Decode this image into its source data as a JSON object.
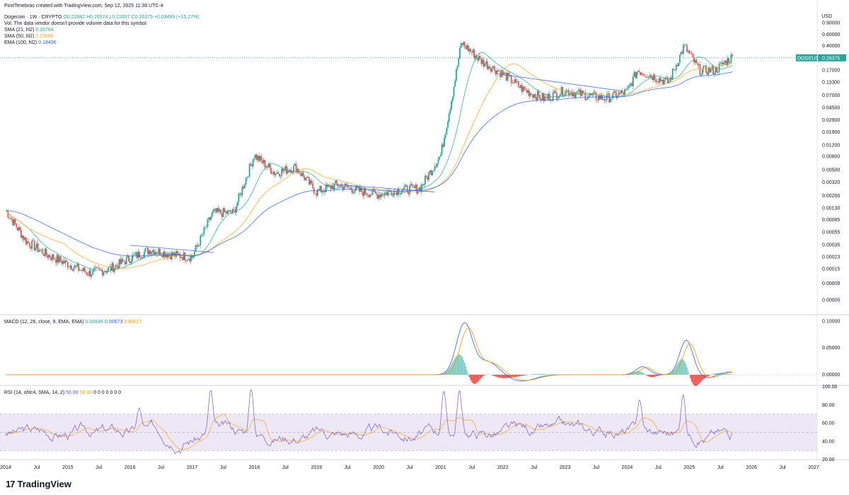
{
  "header": {
    "credit": "PostTenebras created with TradingView.com, Sep 12, 2025 11:38 UTC-4",
    "symbol_line": "Dogecoin · 1W · CRYPTO",
    "ohlc": "O0.22882 H0.26574 L0.22657 C0.26375 +0.03493 (+15.27%)",
    "vol_note": "Vol: The data vendor doesn't provide volume data for this symbol.",
    "sma21_label": "SMA (21, hl2)",
    "sma21_value": "0.20764",
    "sma50_label": "SMA (50, hl2)",
    "sma50_value": "0.23686",
    "ema100_label": "EMA (100, hl2)",
    "ema100_value": "0.18496"
  },
  "currency": "USD",
  "price_tag": {
    "symbol": "DOGEUSD",
    "value": "0.26375"
  },
  "macd_header": {
    "label": "MACD (12, 26, close, 9, EMA, EMA)",
    "v1": "0.00646",
    "v2": "0.00673",
    "v3": "0.00027"
  },
  "rsi_header": {
    "label": "RSI (14, ohlc4, SMA, 14, 2)",
    "v1": "56.88",
    "v2": "58.88",
    "rest": "0 0 0 0 0 0 0"
  },
  "brand": "TradingView",
  "colors": {
    "up": "#26a69a",
    "down": "#ef5350",
    "sma21": "#26a69a",
    "sma50": "#f5a623",
    "ema100": "#2962ff",
    "macd": "#2962ff",
    "signal": "#ff9800",
    "rsi": "#7e57c2",
    "rsi_ma": "#f5a623",
    "rsi_band": "#ede7f6",
    "price_line": "#26a69a"
  },
  "chart_data": [
    {
      "type": "line",
      "title": "Dogecoin · 1W · CRYPTO",
      "scale": "log",
      "x": [
        "2014-01",
        "2014-05",
        "2014-09",
        "2015-01",
        "2015-05",
        "2015-09",
        "2016-01",
        "2016-05",
        "2016-09",
        "2017-01",
        "2017-05",
        "2017-09",
        "2018-01",
        "2018-05",
        "2018-09",
        "2019-01",
        "2019-05",
        "2019-09",
        "2020-01",
        "2020-05",
        "2020-09",
        "2021-01",
        "2021-03",
        "2021-05",
        "2021-09",
        "2022-01",
        "2022-05",
        "2022-09",
        "2023-01",
        "2023-05",
        "2023-09",
        "2024-01",
        "2024-03",
        "2024-09",
        "2024-12",
        "2025-03",
        "2025-06",
        "2025-09"
      ],
      "series": [
        {
          "name": "DOGEUSD",
          "values": [
            0.0012,
            0.0004,
            0.00025,
            0.00018,
            0.00013,
            0.00015,
            0.00022,
            0.0003,
            0.00025,
            0.00023,
            0.0011,
            0.0011,
            0.0085,
            0.0045,
            0.0055,
            0.0023,
            0.003,
            0.0024,
            0.0021,
            0.0025,
            0.0026,
            0.0085,
            0.056,
            0.45,
            0.23,
            0.15,
            0.085,
            0.062,
            0.083,
            0.07,
            0.063,
            0.08,
            0.17,
            0.11,
            0.4,
            0.17,
            0.17,
            0.26375
          ]
        }
      ],
      "yticks": [
        "0.90000",
        "0.60000",
        "0.40000",
        "0.26375",
        "0.17000",
        "0.11000",
        "0.07000",
        "0.04500",
        "0.02900",
        "0.01900",
        "0.01200",
        "0.00800",
        "0.00500",
        "0.00320",
        "0.00200",
        "0.00130",
        "0.00085",
        "0.00055",
        "0.00035",
        "0.00023",
        "0.00015",
        "0.00009",
        "0.00005"
      ],
      "xlabels": [
        "2014",
        "Jul",
        "2015",
        "Jul",
        "2016",
        "Jul",
        "2017",
        "Jul",
        "2018",
        "Jul",
        "2019",
        "Jul",
        "2020",
        "Jul",
        "2021",
        "Jul",
        "2022",
        "Jul",
        "2023",
        "Jul",
        "2024",
        "Jul",
        "2025",
        "Jul",
        "2026",
        "Jul",
        "2027"
      ]
    },
    {
      "type": "line",
      "title": "MACD (12, 26, close, 9, EMA, EMA)",
      "yticks": [
        "0.10000",
        "0.05000",
        "0.00000"
      ],
      "ylim": [
        -0.02,
        0.11
      ]
    },
    {
      "type": "line",
      "title": "RSI (14, ohlc4, SMA, 14, 2)",
      "yticks": [
        "100.00",
        "80.00",
        "60.00",
        "40.00",
        "20.00"
      ],
      "ylim": [
        20,
        100
      ],
      "bands": [
        30,
        70
      ]
    }
  ]
}
